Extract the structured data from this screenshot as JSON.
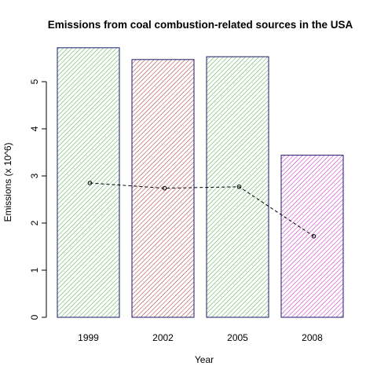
{
  "chart_data": {
    "type": "bar",
    "title": "Emissions from coal combustion-related sources in the USA",
    "xlabel": "Year",
    "ylabel": "Emissions (x 10^6)",
    "categories": [
      "1999",
      "2002",
      "2005",
      "2008"
    ],
    "values": [
      5.72,
      5.47,
      5.53,
      3.44
    ],
    "bar_colors": [
      "#2ca02c",
      "#a01010",
      "#2ca02c",
      "#c000c0"
    ],
    "bar_border_color": "#1a1a6e",
    "ylim": [
      0,
      5.75
    ],
    "yticks": [
      0,
      1,
      2,
      3,
      4,
      5
    ],
    "overlay_line": {
      "style": "dashed",
      "marker": "open-circle",
      "values": [
        2.85,
        2.74,
        2.77,
        1.72
      ]
    },
    "grid": false,
    "legend": "none"
  }
}
